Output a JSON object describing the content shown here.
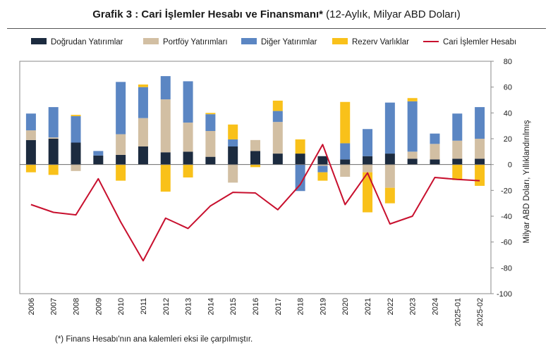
{
  "title_bold": "Grafik 3 : Cari İşlemler Hesabı ve Finansmanı*",
  "title_normal": " (12-Aylık, Milyar ABD Doları)",
  "footnote": "(*) Finans Hesabı'nın ana kalemleri eksi ile çarpılmıştır.",
  "chart_data": {
    "type": "bar",
    "stacked": true,
    "categories": [
      "2006",
      "2007",
      "2008",
      "2009",
      "2010",
      "2011",
      "2012",
      "2013",
      "2014",
      "2015",
      "2016",
      "2017",
      "2018",
      "2019",
      "2020",
      "2021",
      "2022",
      "2023",
      "2024",
      "2025-01",
      "2025-02"
    ],
    "ylabel": "Milyar ABD Doları, Yıllıklandırılmış",
    "ylim": [
      -100,
      80
    ],
    "yticks": [
      -100,
      -80,
      -60,
      -40,
      -20,
      0,
      20,
      40,
      60,
      80
    ],
    "legend_position": "top",
    "series": [
      {
        "name": "Doğrudan Yatırımlar",
        "color": "#1c2b3f",
        "values": [
          19,
          20,
          17,
          7,
          7.5,
          14,
          9.5,
          10,
          6,
          14,
          10.5,
          8.5,
          8.5,
          6.5,
          4,
          6.5,
          8.5,
          4.5,
          4,
          4.5,
          4.5
        ]
      },
      {
        "name": "Portföy Yatırımları",
        "color": "#d2bfa3",
        "values": [
          7.5,
          1,
          -5,
          0,
          16,
          22,
          41,
          22.5,
          20,
          -14,
          8.5,
          24.5,
          0,
          -1,
          -9.5,
          -6,
          -18,
          5.5,
          12,
          14,
          15.5
        ]
      },
      {
        "name": "Diğer Yatırımlar",
        "color": "#5b86c3",
        "values": [
          13,
          23.5,
          20.5,
          3.5,
          40.5,
          24,
          18,
          32,
          13,
          5.5,
          0,
          8.5,
          -20.5,
          -5,
          12.5,
          21,
          39.5,
          39,
          8,
          21,
          24.5
        ]
      },
      {
        "name": "Rezerv Varlıklar",
        "color": "#f9c11a",
        "values": [
          -6,
          -8,
          1,
          0,
          -12.5,
          2,
          -21,
          -10,
          1,
          11.5,
          -2,
          8,
          11,
          -6.5,
          32,
          -31,
          -12,
          2.5,
          0,
          -12,
          -16.5
        ]
      }
    ],
    "line_series": {
      "name": "Cari İşlemler Hesabı",
      "color": "#c8102e",
      "values": [
        -31,
        -37,
        -39,
        -11,
        -44.5,
        -74.5,
        -41.5,
        -49.5,
        -32,
        -21.5,
        -22,
        -35,
        -15.5,
        15.5,
        -31,
        -6.5,
        -46,
        -40,
        -10,
        -11.5,
        -12.5
      ]
    }
  }
}
